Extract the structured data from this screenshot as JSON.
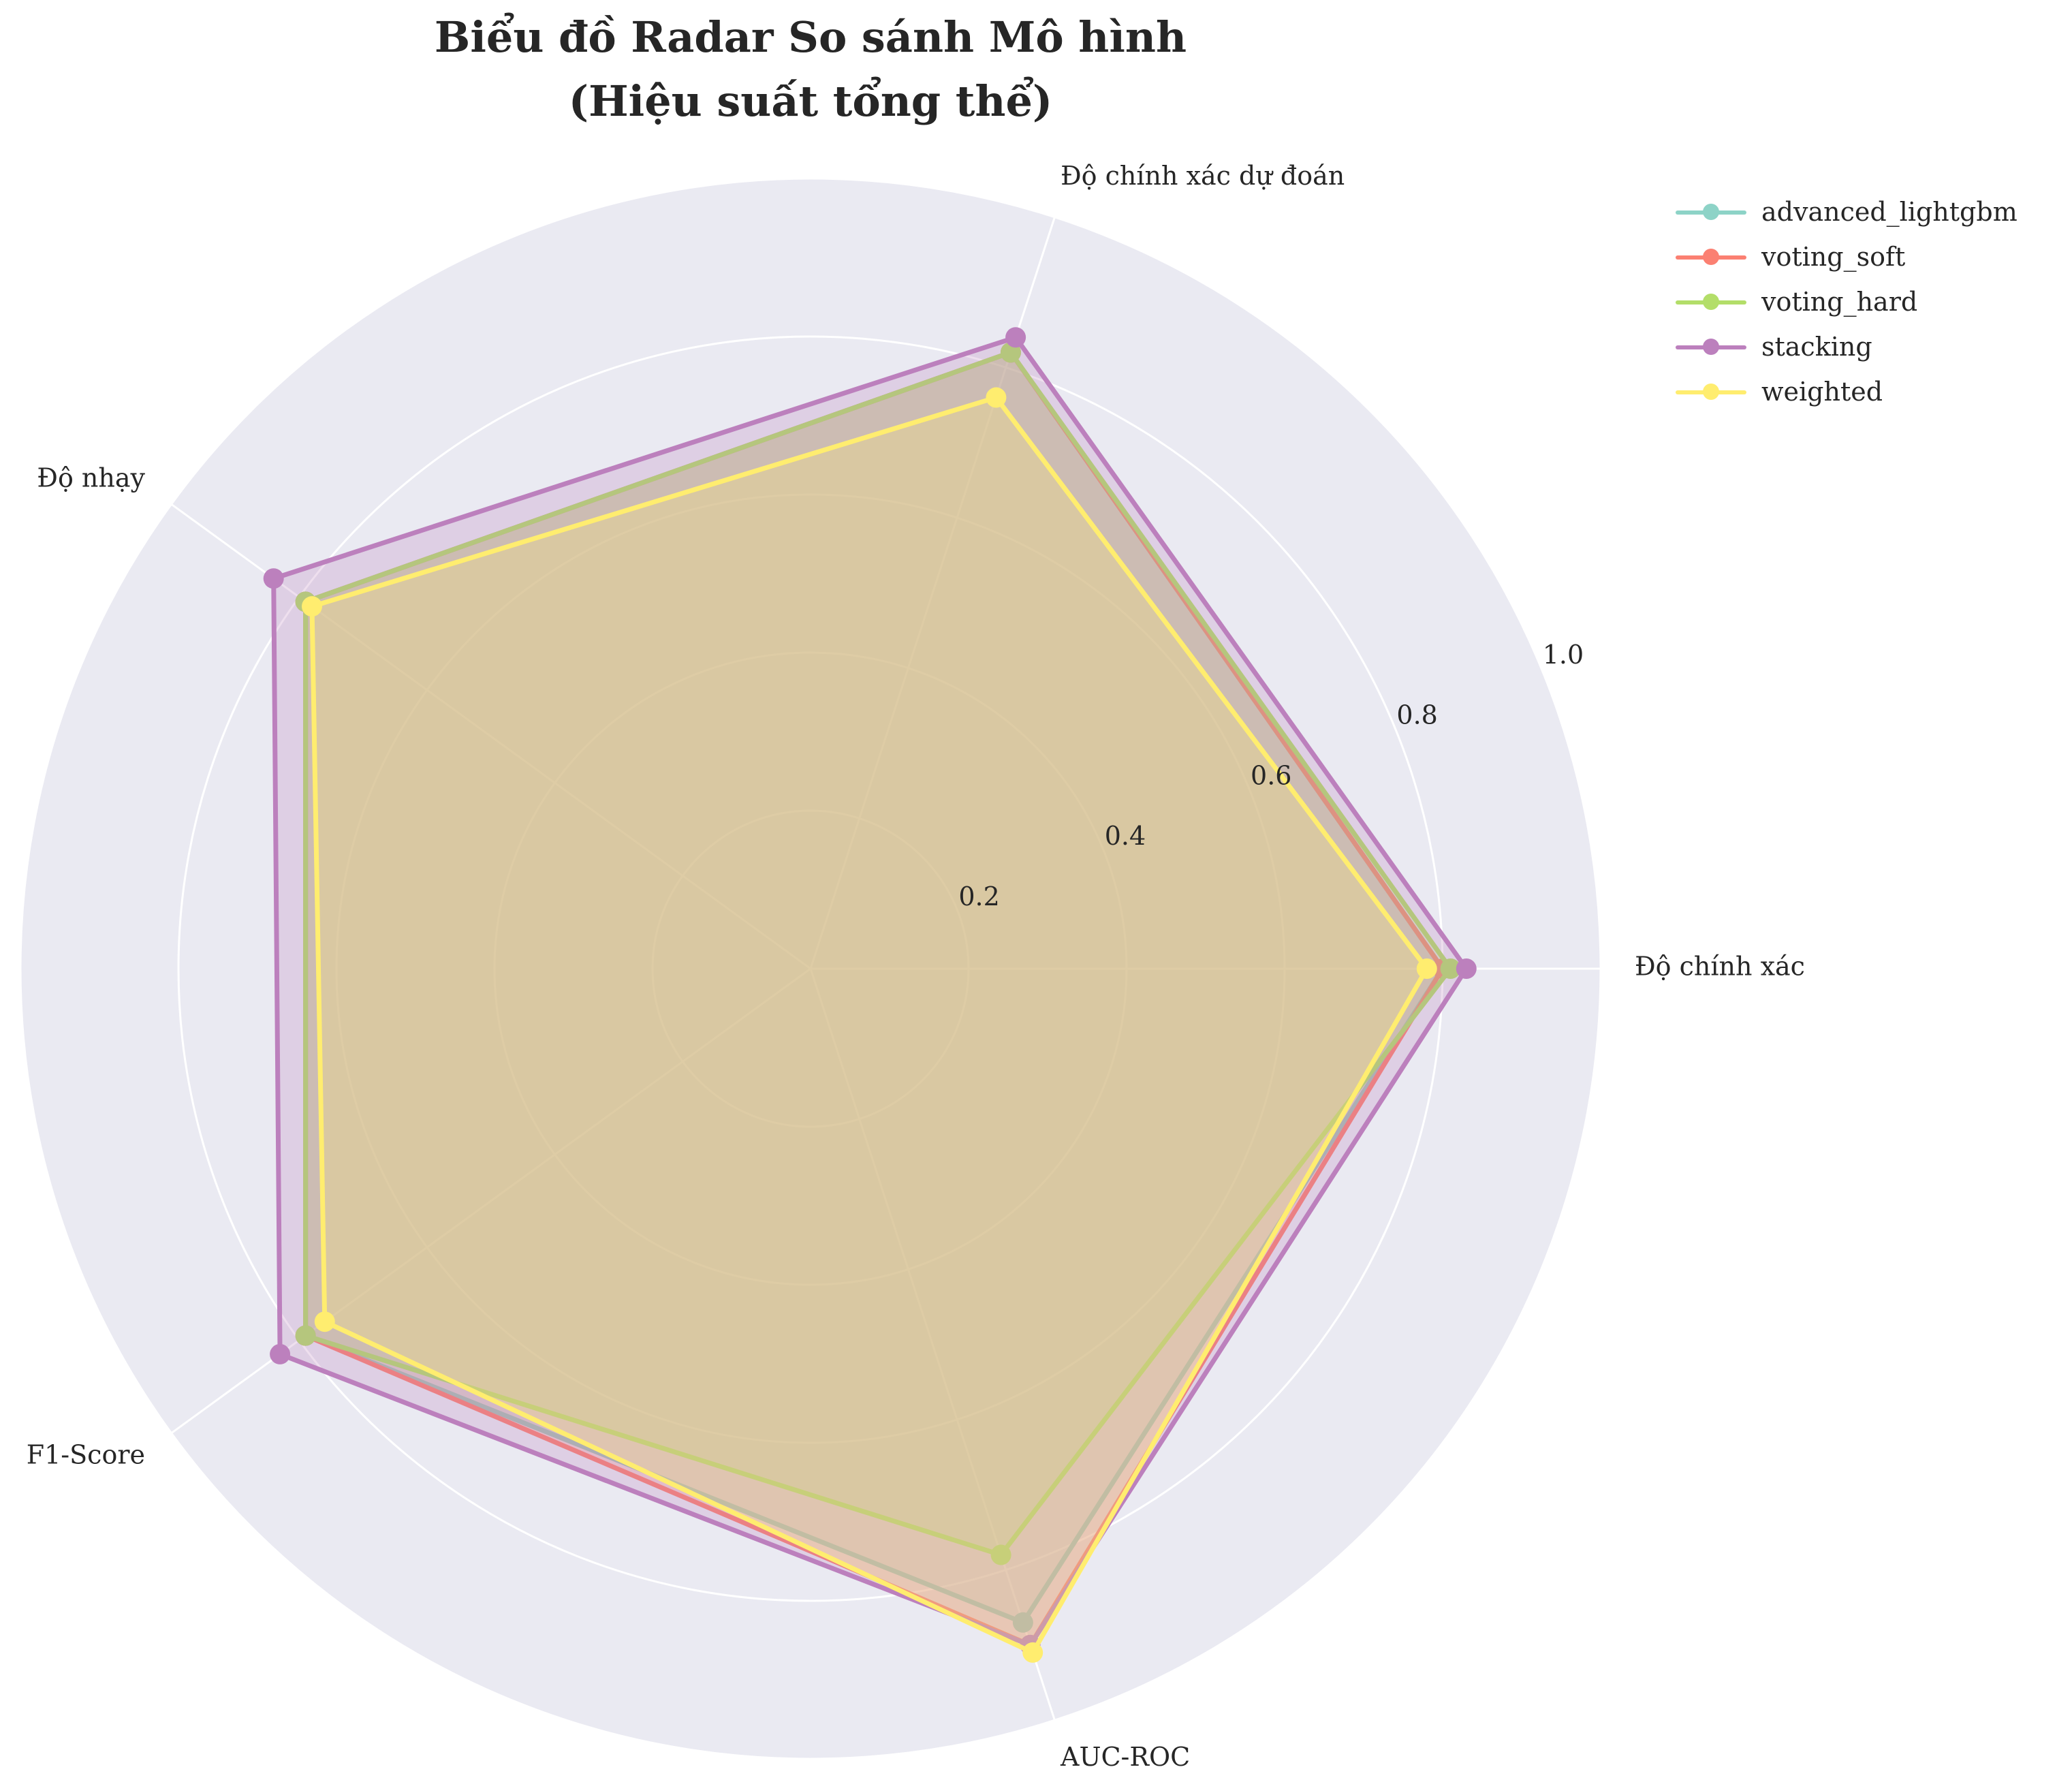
{
  "chart_data": {
    "type": "radar",
    "title_lines": [
      "Biểu đồ Radar So sánh Mô hình",
      "(Hiệu suất tổng thể)"
    ],
    "axes": [
      "Độ chính xác",
      "Độ chính xác dự đoán",
      "Độ nhạy",
      "F1-Score",
      "AUC-ROC"
    ],
    "rlim": [
      0,
      1.0
    ],
    "rticks": [
      0.2,
      0.4,
      0.6,
      0.8,
      1.0
    ],
    "rtick_labels": [
      "0.2",
      "0.4",
      "0.6",
      "0.8",
      "1.0"
    ],
    "grid": true,
    "legend_position": "top-right",
    "series": [
      {
        "name": "advanced_lightgbm",
        "color": "#8dd3c7",
        "values": [
          0.8,
          0.82,
          0.79,
          0.79,
          0.87
        ]
      },
      {
        "name": "voting_soft",
        "color": "#fb8072",
        "values": [
          0.8,
          0.82,
          0.79,
          0.79,
          0.9
        ]
      },
      {
        "name": "voting_hard",
        "color": "#b3de69",
        "values": [
          0.81,
          0.82,
          0.79,
          0.79,
          0.78
        ]
      },
      {
        "name": "stacking",
        "color": "#bc80bd",
        "values": [
          0.83,
          0.84,
          0.84,
          0.83,
          0.9
        ]
      },
      {
        "name": "weighted",
        "color": "#ffed6f",
        "values": [
          0.78,
          0.76,
          0.78,
          0.76,
          0.91
        ]
      }
    ]
  }
}
